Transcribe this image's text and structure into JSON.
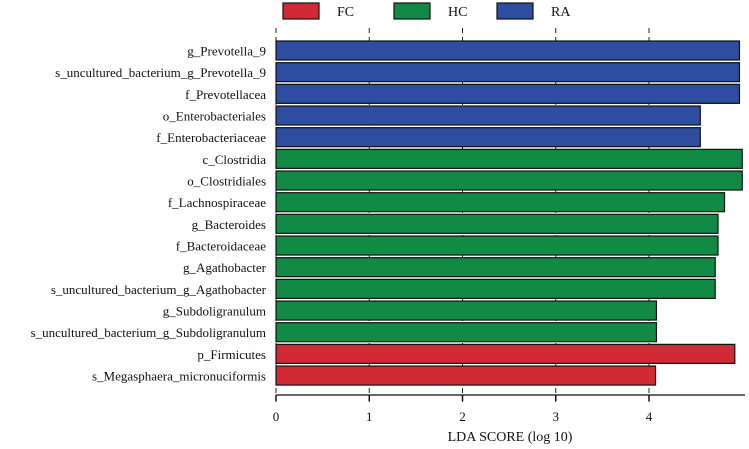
{
  "chart_data": {
    "type": "bar",
    "orientation": "horizontal",
    "xlabel": "LDA SCORE (log 10)",
    "xlim": [
      0,
      5
    ],
    "xticks": [
      0,
      1,
      2,
      3,
      4
    ],
    "grid": "dashed vertical lines at ticks",
    "legend": {
      "placement": "top",
      "entries": [
        {
          "name": "FC",
          "color": "#d12a36"
        },
        {
          "name": "HC",
          "color": "#118a46"
        },
        {
          "name": "RA",
          "color": "#2e4ca0"
        }
      ]
    },
    "bars": [
      {
        "label": "g_Prevotella_9",
        "value": 4.97,
        "group": "RA"
      },
      {
        "label": "s_uncultured_bacterium_g_Prevotella_9",
        "value": 4.97,
        "group": "RA"
      },
      {
        "label": "f_Prevotellacea",
        "value": 4.97,
        "group": "RA"
      },
      {
        "label": "o_Enterobacteriales",
        "value": 4.55,
        "group": "RA"
      },
      {
        "label": "f_Enterobacteriaceae",
        "value": 4.55,
        "group": "RA"
      },
      {
        "label": "c_Clostridia",
        "value": 5.0,
        "group": "HC"
      },
      {
        "label": "o_Clostridiales",
        "value": 5.0,
        "group": "HC"
      },
      {
        "label": "f_Lachnospiraceae",
        "value": 4.81,
        "group": "HC"
      },
      {
        "label": "g_Bacteroides",
        "value": 4.74,
        "group": "HC"
      },
      {
        "label": "f_Bacteroidaceae",
        "value": 4.74,
        "group": "HC"
      },
      {
        "label": "g_Agathobacter",
        "value": 4.71,
        "group": "HC"
      },
      {
        "label": "s_uncultured_bacterium_g_Agathobacter",
        "value": 4.71,
        "group": "HC"
      },
      {
        "label": "g_Subdoligranulum",
        "value": 4.08,
        "group": "HC"
      },
      {
        "label": "s_uncultured_bacterium_g_Subdoligranulum",
        "value": 4.08,
        "group": "HC"
      },
      {
        "label": "p_Firmicutes",
        "value": 4.92,
        "group": "FC"
      },
      {
        "label": "s_Megasphaera_micronuciformis",
        "value": 4.07,
        "group": "FC"
      }
    ]
  }
}
